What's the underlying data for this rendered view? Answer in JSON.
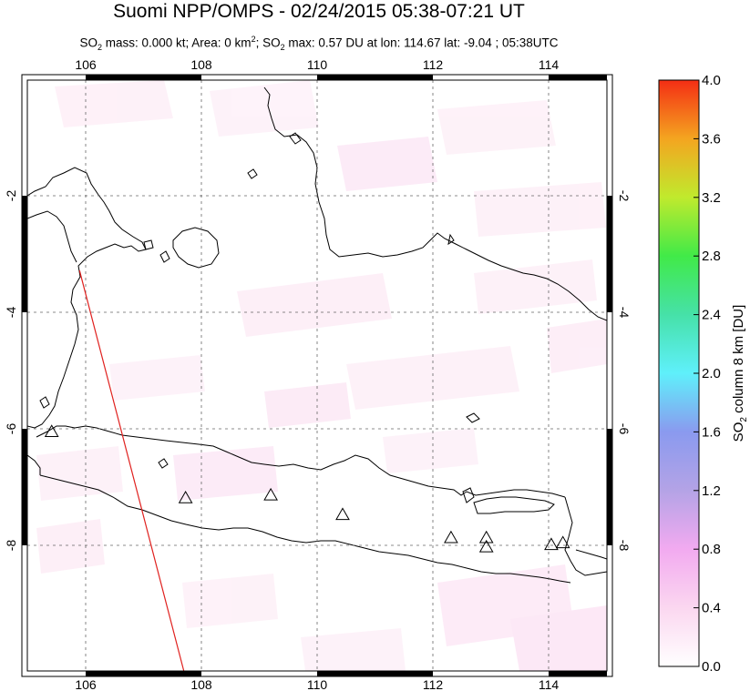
{
  "header": {
    "title": "Suomi NPP/OMPS - 02/24/2015 05:38-07:21 UT",
    "subtitle": {
      "p1": "SO",
      "s1": "2",
      "p2": " mass: 0.000 kt; Area: 0 km",
      "s2": "2",
      "p3": "; SO",
      "s3": "2",
      "p4": " max: 0.57 DU at lon: 114.67 lat: -9.04 ; 05:38UTC"
    }
  },
  "map": {
    "lon_range": [
      105,
      115
    ],
    "lat_range": [
      -10.25,
      0
    ],
    "lon_ticks": [
      106,
      108,
      110,
      112,
      114
    ],
    "lon_tick_labels": [
      "106",
      "108",
      "110",
      "112",
      "114"
    ],
    "lat_ticks": [
      -2,
      -4,
      -6,
      -8
    ],
    "lat_tick_labels": [
      "-2",
      "-4",
      "-6",
      "-8"
    ],
    "volcanoes": [
      {
        "lon": 105.42,
        "lat": -6.1
      },
      {
        "lon": 107.73,
        "lat": -7.25
      },
      {
        "lon": 109.2,
        "lat": -7.2
      },
      {
        "lon": 110.44,
        "lat": -7.54
      },
      {
        "lon": 112.31,
        "lat": -7.94
      },
      {
        "lon": 112.92,
        "lat": -7.94
      },
      {
        "lon": 112.92,
        "lat": -8.1
      },
      {
        "lon": 114.04,
        "lat": -8.06
      },
      {
        "lon": 114.24,
        "lat": -8.03
      }
    ],
    "orbit_track": {
      "start": {
        "lon": 105.9,
        "lat": -3.3
      },
      "end": {
        "lon": 107.7,
        "lat": -10.25
      }
    },
    "track_color": "#e0201e",
    "grid": true
  },
  "colorbar": {
    "label_prefix": "SO",
    "label_sub": "2",
    "label_suffix": " column 8 km [DU]",
    "ticks": [
      "4.0",
      "3.6",
      "3.2",
      "2.8",
      "2.4",
      "2.0",
      "1.6",
      "1.2",
      "0.8",
      "0.4",
      "0.0"
    ],
    "min": 0.0,
    "max": 4.0
  }
}
